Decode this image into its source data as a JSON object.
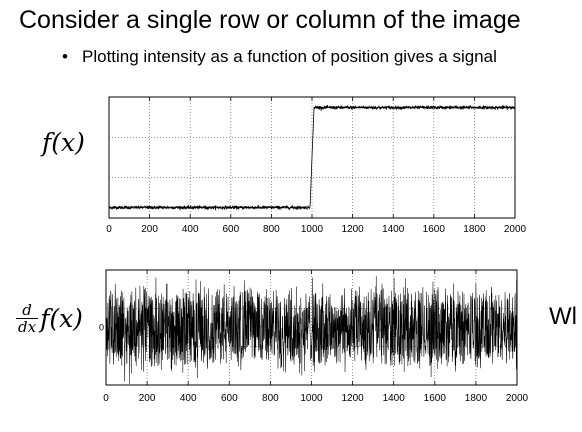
{
  "slide": {
    "title": "Consider a single row or column of the image",
    "bullet": "Plotting intensity as a function of position gives a signal",
    "cut_off_text": "Wl"
  },
  "chart_data": [
    {
      "type": "line",
      "ylabel": "f(x)",
      "xlim": [
        0,
        2000
      ],
      "x_ticks": [
        0,
        200,
        400,
        600,
        800,
        1000,
        1200,
        1400,
        1600,
        1800,
        2000
      ],
      "grid": true,
      "series": [
        {
          "description_points": [
            [
              0,
              0.05
            ],
            [
              990,
              0.05
            ],
            [
              1010,
              1.0
            ],
            [
              2000,
              1.0
            ]
          ],
          "noise_amplitude": 0.015
        }
      ],
      "ylim": [
        -0.05,
        1.1
      ]
    },
    {
      "type": "line",
      "ylabel_num": "d",
      "ylabel_den": "dx",
      "ylabel_body": "f(x)",
      "y_zero_tick": "0",
      "xlim": [
        0,
        2000
      ],
      "x_ticks": [
        0,
        200,
        400,
        600,
        800,
        1000,
        1200,
        1400,
        1600,
        1800,
        2000
      ],
      "grid": true,
      "series": [
        {
          "description_points": [
            [
              0,
              0
            ],
            [
              2000,
              0
            ]
          ],
          "noise_amplitude": 1.0
        }
      ],
      "ylim": [
        -1.1,
        1.1
      ]
    }
  ]
}
